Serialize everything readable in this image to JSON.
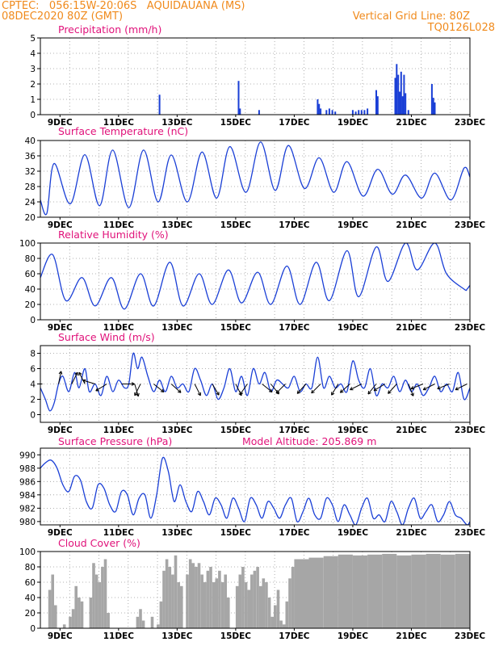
{
  "header": {
    "line1_left": "CPTEC:   056:15W-20:06S   AQUIDAUANA (MS)",
    "line2_left": "08DEC2020 80Z (GMT)",
    "line1_right": "Vertical Grid Line: 80Z",
    "line2_right": "TQ0126L028"
  },
  "colors": {
    "header": "#f08a1c",
    "title": "#e0127a",
    "line": "#1a3fd6",
    "bar": "#1a3fd6",
    "cloud": "#a6a6a6",
    "arrow": "#000000"
  },
  "x_axis_labels": [
    "9DEC",
    "11DEC",
    "13DEC",
    "15DEC",
    "17DEC",
    "19DEC",
    "21DEC",
    "23DEC"
  ],
  "chart_data": [
    {
      "type": "bar",
      "title": "Precipitation (mm/h)",
      "ylim": [
        0,
        5
      ],
      "yticks": [
        0,
        1,
        2,
        3,
        4,
        5
      ],
      "xlim_days": [
        8.33,
        23
      ],
      "x": [
        12.4,
        15.1,
        15.15,
        15.8,
        17.8,
        17.85,
        17.9,
        18.1,
        18.2,
        18.3,
        18.4,
        19.0,
        19.1,
        19.2,
        19.3,
        19.4,
        19.5,
        19.8,
        19.85,
        20.45,
        20.5,
        20.55,
        20.6,
        20.65,
        20.7,
        20.75,
        20.8,
        20.9,
        21.7,
        21.75,
        21.8
      ],
      "values": [
        1.3,
        2.2,
        0.4,
        0.3,
        1.0,
        0.7,
        0.4,
        0.3,
        0.4,
        0.3,
        0.2,
        0.3,
        0.2,
        0.3,
        0.3,
        0.3,
        0.4,
        1.6,
        1.2,
        2.4,
        3.3,
        2.6,
        1.5,
        2.8,
        1.2,
        2.6,
        1.4,
        0.3,
        2.0,
        1.1,
        0.8
      ]
    },
    {
      "type": "line",
      "title": "Surface Temperature (nC)",
      "ylim": [
        20,
        40
      ],
      "yticks": [
        20,
        24,
        28,
        32,
        36,
        40
      ],
      "xlim_days": [
        8.33,
        23
      ],
      "peak_days": [
        8.8,
        9.85,
        10.8,
        11.85,
        12.8,
        13.85,
        14.8,
        15.85,
        16.8,
        17.85,
        18.8,
        19.85,
        20.8,
        21.8,
        22.8
      ],
      "peak_values": [
        34.0,
        36.3,
        37.5,
        37.5,
        36.2,
        37.0,
        38.4,
        39.6,
        38.7,
        35.5,
        34.5,
        32.5,
        31.0,
        31.5,
        32.8
      ],
      "trough_days": [
        8.33,
        8.55,
        9.35,
        10.35,
        11.35,
        12.35,
        13.35,
        14.35,
        15.35,
        16.35,
        17.35,
        18.35,
        19.35,
        20.35,
        21.35,
        22.35,
        23
      ],
      "trough_values": [
        24.5,
        21.0,
        23.5,
        23.0,
        22.5,
        24.0,
        24.0,
        25.0,
        26.5,
        27.0,
        27.5,
        26.5,
        25.5,
        26.0,
        25.0,
        24.5,
        30.5
      ]
    },
    {
      "type": "line",
      "title": "Relative Humidity (%)",
      "ylim": [
        0,
        100
      ],
      "yticks": [
        0,
        20,
        40,
        60,
        80,
        100
      ],
      "xlim_days": [
        8.33,
        23
      ],
      "peak_days": [
        8.33,
        8.75,
        9.75,
        10.75,
        11.75,
        12.75,
        13.75,
        14.75,
        15.75,
        16.75,
        17.75,
        18.8,
        19.8,
        20.8,
        21.8,
        22.8,
        23
      ],
      "peak_values": [
        55,
        85,
        55,
        55,
        60,
        75,
        60,
        65,
        62,
        70,
        75,
        90,
        95,
        100,
        100,
        40,
        45
      ],
      "trough_days": [
        8.33,
        9.2,
        10.2,
        11.2,
        12.2,
        13.2,
        14.2,
        15.2,
        16.2,
        17.2,
        18.2,
        19.2,
        20.2,
        21.2,
        22.2,
        22.9
      ],
      "trough_values": [
        55,
        25,
        18,
        14,
        18,
        18,
        20,
        22,
        20,
        20,
        25,
        30,
        50,
        65,
        60,
        40
      ]
    },
    {
      "type": "line",
      "title": "Surface Wind (m/s)",
      "ylim": [
        -1,
        9
      ],
      "yticks": [
        0,
        2,
        4,
        6,
        8
      ],
      "xlim_days": [
        8.33,
        23
      ],
      "x": [
        8.33,
        8.5,
        8.65,
        8.8,
        8.95,
        9.1,
        9.3,
        9.5,
        9.65,
        9.85,
        10.0,
        10.2,
        10.4,
        10.6,
        10.8,
        11.0,
        11.2,
        11.35,
        11.5,
        11.65,
        11.8,
        12.0,
        12.2,
        12.4,
        12.6,
        12.8,
        13.0,
        13.2,
        13.4,
        13.6,
        13.8,
        14.0,
        14.2,
        14.4,
        14.6,
        14.8,
        15.0,
        15.2,
        15.4,
        15.6,
        15.8,
        16.0,
        16.2,
        16.4,
        16.6,
        16.8,
        17.0,
        17.2,
        17.4,
        17.6,
        17.8,
        18.0,
        18.2,
        18.4,
        18.6,
        18.8,
        19.0,
        19.2,
        19.4,
        19.6,
        19.8,
        20.0,
        20.2,
        20.4,
        20.6,
        20.8,
        21.0,
        21.2,
        21.4,
        21.6,
        21.8,
        22.0,
        22.2,
        22.4,
        22.6,
        22.8,
        23.0
      ],
      "values": [
        3.5,
        2.0,
        0.5,
        1.5,
        4.0,
        5.0,
        3.0,
        5.5,
        3.5,
        6.0,
        3.0,
        4.0,
        2.5,
        5.0,
        3.0,
        4.5,
        3.5,
        4.0,
        8.0,
        6.0,
        7.5,
        5.0,
        3.0,
        4.5,
        3.0,
        5.0,
        3.5,
        4.0,
        3.0,
        6.0,
        4.5,
        2.5,
        4.0,
        2.0,
        3.5,
        6.0,
        3.0,
        5.0,
        2.5,
        6.0,
        4.0,
        5.5,
        3.0,
        4.5,
        4.0,
        3.5,
        5.0,
        3.0,
        4.0,
        3.5,
        7.5,
        3.5,
        5.0,
        3.5,
        4.0,
        3.0,
        7.0,
        4.5,
        3.5,
        6.0,
        2.5,
        4.0,
        3.5,
        5.0,
        3.0,
        4.5,
        3.0,
        4.0,
        2.5,
        3.5,
        5.0,
        3.0,
        4.0,
        3.0,
        5.5,
        2.0,
        3.5
      ]
    },
    {
      "type": "line",
      "title": "Surface Pressure (hPa)",
      "subtitle": "Model Altitude: 205.869  m",
      "ylim": [
        979.5,
        991
      ],
      "yticks": [
        980,
        982,
        984,
        986,
        988,
        990
      ],
      "xlim_days": [
        8.33,
        23
      ],
      "x": [
        8.33,
        8.5,
        8.7,
        8.9,
        9.1,
        9.3,
        9.5,
        9.7,
        9.9,
        10.1,
        10.3,
        10.5,
        10.7,
        10.9,
        11.1,
        11.3,
        11.5,
        11.7,
        11.9,
        12.1,
        12.3,
        12.5,
        12.7,
        12.9,
        13.1,
        13.3,
        13.5,
        13.7,
        13.9,
        14.1,
        14.3,
        14.5,
        14.7,
        14.9,
        15.1,
        15.3,
        15.5,
        15.7,
        15.9,
        16.1,
        16.3,
        16.5,
        16.7,
        16.9,
        17.1,
        17.3,
        17.5,
        17.7,
        17.9,
        18.1,
        18.3,
        18.5,
        18.7,
        18.9,
        19.1,
        19.3,
        19.5,
        19.7,
        19.9,
        20.1,
        20.3,
        20.5,
        20.7,
        20.9,
        21.1,
        21.3,
        21.5,
        21.7,
        21.9,
        22.1,
        22.3,
        22.5,
        22.7,
        22.9,
        23.0
      ],
      "values": [
        988.0,
        988.8,
        989.2,
        988.0,
        985.5,
        984.5,
        986.8,
        986.2,
        983.0,
        982.0,
        985.5,
        985.0,
        982.5,
        981.5,
        984.5,
        984.0,
        981.0,
        983.5,
        984.0,
        980.5,
        984.0,
        989.5,
        987.5,
        983.0,
        985.5,
        983.0,
        981.5,
        984.5,
        983.0,
        981.0,
        983.5,
        982.5,
        980.5,
        983.5,
        982.0,
        980.0,
        983.5,
        982.5,
        980.5,
        983.0,
        982.0,
        980.5,
        982.5,
        983.5,
        980.0,
        981.5,
        983.5,
        981.0,
        980.5,
        983.5,
        982.5,
        980.0,
        982.5,
        981.0,
        979.5,
        982.0,
        983.5,
        980.5,
        981.0,
        980.0,
        983.0,
        981.5,
        979.5,
        982.0,
        983.5,
        980.5,
        981.5,
        982.5,
        980.0,
        981.0,
        983.0,
        981.0,
        980.5,
        979.5,
        980.0
      ]
    },
    {
      "type": "area",
      "title": "Cloud Cover (%)",
      "ylim": [
        0,
        100
      ],
      "yticks": [
        0,
        20,
        40,
        60,
        80,
        100
      ],
      "xlim_days": [
        8.33,
        23
      ],
      "x": [
        8.33,
        8.5,
        8.6,
        8.7,
        8.8,
        8.9,
        9.0,
        9.1,
        9.2,
        9.3,
        9.4,
        9.5,
        9.6,
        9.7,
        9.8,
        9.9,
        10.0,
        10.1,
        10.2,
        10.3,
        10.4,
        10.5,
        10.6,
        10.7,
        10.8,
        11.0,
        11.2,
        11.4,
        11.6,
        11.7,
        11.8,
        11.9,
        12.0,
        12.1,
        12.2,
        12.3,
        12.4,
        12.5,
        12.6,
        12.7,
        12.8,
        12.9,
        13.0,
        13.1,
        13.2,
        13.3,
        13.4,
        13.5,
        13.6,
        13.7,
        13.8,
        13.9,
        14.0,
        14.1,
        14.2,
        14.3,
        14.4,
        14.5,
        14.6,
        14.7,
        14.8,
        14.9,
        15.0,
        15.1,
        15.2,
        15.3,
        15.4,
        15.5,
        15.6,
        15.7,
        15.8,
        15.9,
        16.0,
        16.1,
        16.2,
        16.3,
        16.4,
        16.5,
        16.6,
        16.7,
        16.8,
        16.9,
        17.0,
        17.5,
        18.0,
        18.5,
        19.0,
        19.5,
        20.0,
        20.5,
        21.0,
        21.5,
        22.0,
        22.5,
        23.0
      ],
      "values": [
        0,
        0,
        50,
        70,
        30,
        0,
        0,
        5,
        0,
        15,
        25,
        55,
        40,
        35,
        0,
        0,
        40,
        85,
        70,
        60,
        80,
        90,
        20,
        0,
        0,
        0,
        0,
        0,
        15,
        25,
        10,
        0,
        0,
        15,
        0,
        5,
        35,
        75,
        90,
        80,
        70,
        95,
        60,
        55,
        0,
        70,
        90,
        85,
        80,
        85,
        70,
        60,
        75,
        80,
        60,
        65,
        75,
        60,
        70,
        40,
        0,
        0,
        55,
        70,
        80,
        60,
        50,
        70,
        75,
        80,
        55,
        65,
        60,
        40,
        15,
        30,
        50,
        10,
        5,
        35,
        65,
        80,
        90,
        92,
        94,
        96,
        95,
        96,
        97,
        95,
        96,
        97,
        96,
        97,
        98
      ]
    }
  ],
  "wind_barbs": [
    {
      "day": 8.4,
      "dx": -1,
      "dy": 0
    },
    {
      "day": 8.95,
      "dx": 0.2,
      "dy": -1
    },
    {
      "day": 9.4,
      "dx": 0.5,
      "dy": -1
    },
    {
      "day": 9.85,
      "dx": -0.5,
      "dy": -1
    },
    {
      "day": 10.2,
      "dx": -1,
      "dy": -0.3
    },
    {
      "day": 10.6,
      "dx": -0.8,
      "dy": 0.5
    },
    {
      "day": 11.1,
      "dx": 1,
      "dy": 0
    },
    {
      "day": 11.55,
      "dx": 0.3,
      "dy": 1
    },
    {
      "day": 11.75,
      "dx": -0.5,
      "dy": 1
    },
    {
      "day": 12.2,
      "dx": 1,
      "dy": 0.8
    },
    {
      "day": 12.8,
      "dx": 1,
      "dy": 0.9
    },
    {
      "day": 13.6,
      "dx": 0.5,
      "dy": 1
    },
    {
      "day": 14.2,
      "dx": 0.6,
      "dy": 1
    },
    {
      "day": 15.0,
      "dx": 0.5,
      "dy": 1
    },
    {
      "day": 15.4,
      "dx": -0.7,
      "dy": 1
    },
    {
      "day": 15.9,
      "dx": 1,
      "dy": 0.8
    },
    {
      "day": 16.2,
      "dx": 0.8,
      "dy": 1
    },
    {
      "day": 16.7,
      "dx": -1,
      "dy": 1
    },
    {
      "day": 17.4,
      "dx": -0.9,
      "dy": 1
    },
    {
      "day": 17.9,
      "dx": -1,
      "dy": 1
    },
    {
      "day": 18.5,
      "dx": -0.6,
      "dy": 1
    },
    {
      "day": 18.9,
      "dx": -1,
      "dy": 0.9
    },
    {
      "day": 19.3,
      "dx": -1,
      "dy": 0.5
    },
    {
      "day": 19.8,
      "dx": -0.8,
      "dy": 1
    },
    {
      "day": 20.1,
      "dx": -1,
      "dy": 0.6
    },
    {
      "day": 20.5,
      "dx": -0.9,
      "dy": 1
    },
    {
      "day": 20.9,
      "dx": 0.4,
      "dy": 1
    },
    {
      "day": 21.4,
      "dx": -1,
      "dy": 0.4
    },
    {
      "day": 21.8,
      "dx": -1,
      "dy": 0.5
    },
    {
      "day": 22.3,
      "dx": -1,
      "dy": 0.4
    },
    {
      "day": 22.9,
      "dx": -1,
      "dy": 0.5
    }
  ]
}
